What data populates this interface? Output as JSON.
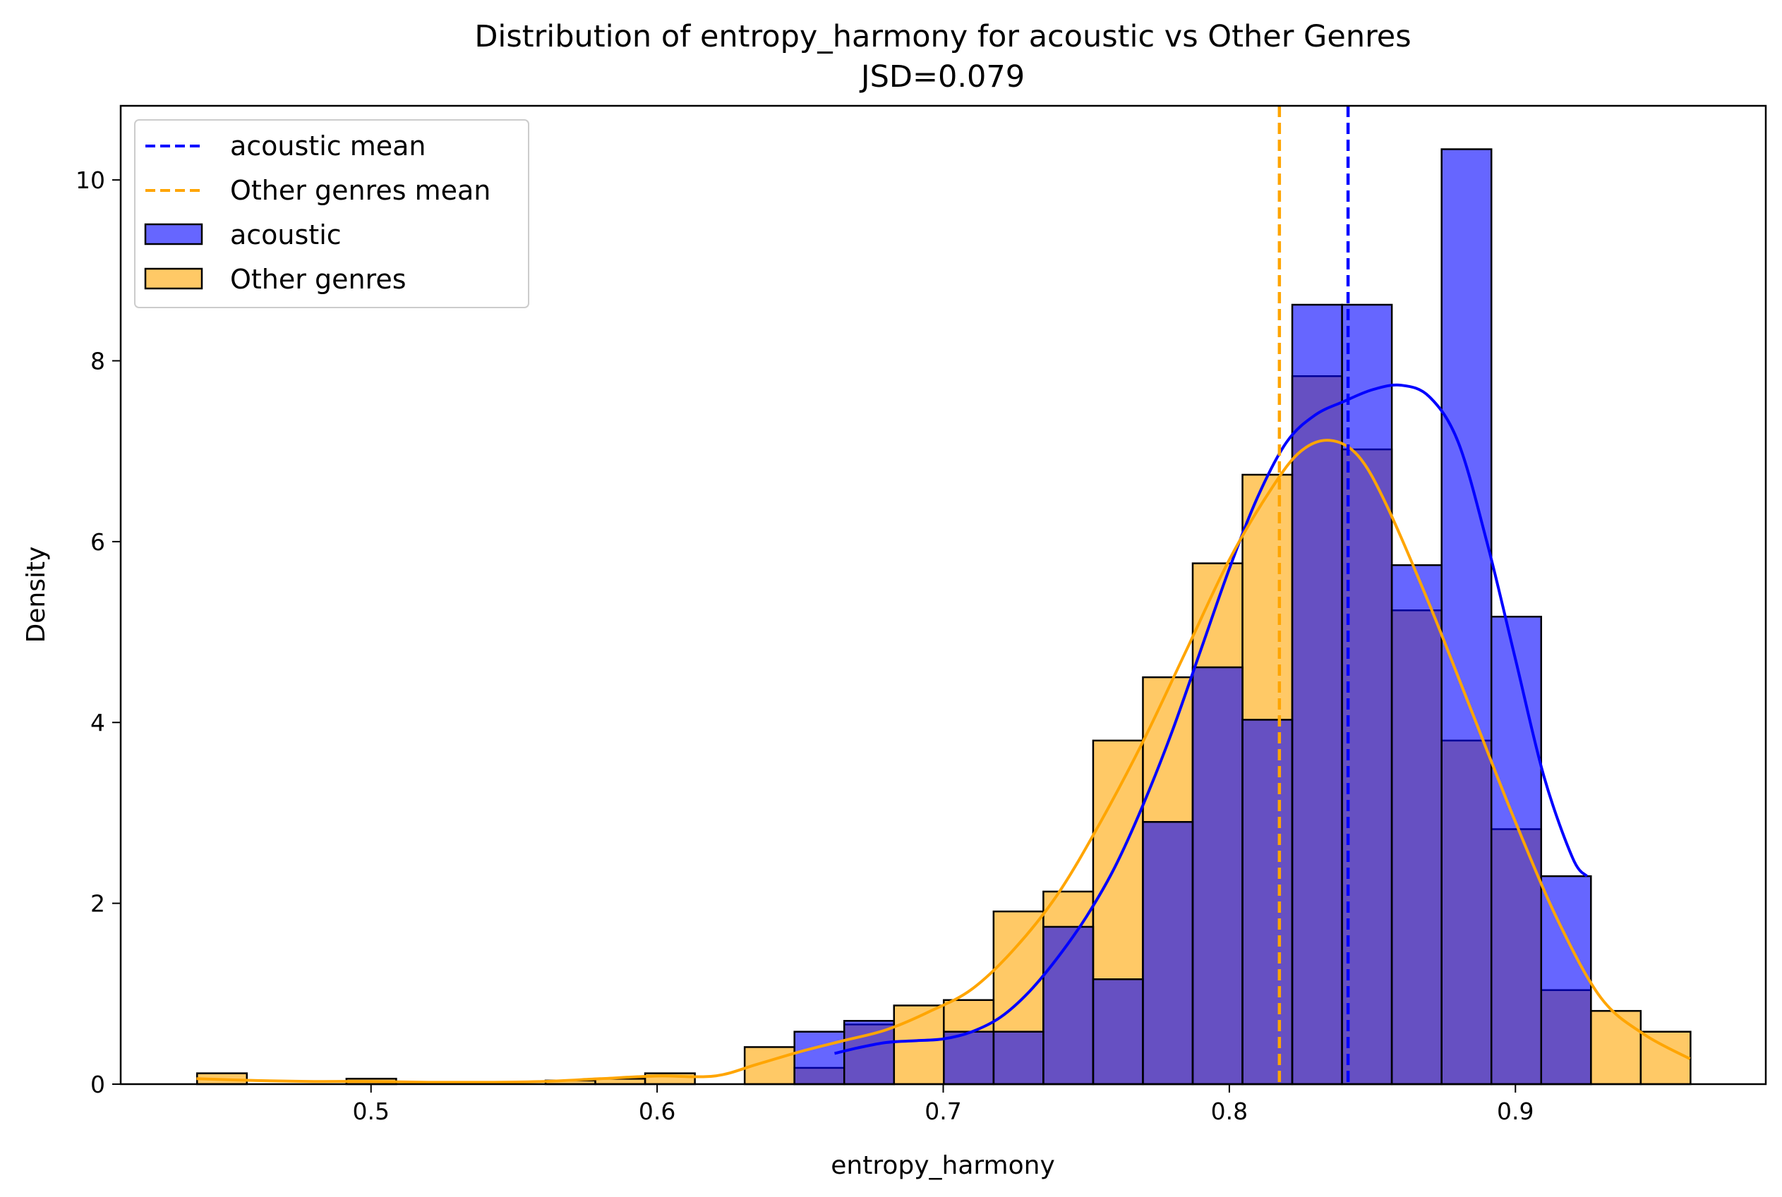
{
  "chart_data": {
    "type": "histogram",
    "title": "Distribution of entropy_harmony for acoustic vs Other Genres",
    "subtitle": "JSD=0.079",
    "xlabel": "entropy_harmony",
    "ylabel": "Density",
    "xlim": [
      0.4125,
      0.9875
    ],
    "ylim": [
      0,
      10.82
    ],
    "xticks": [
      0.5,
      0.6,
      0.7,
      0.8,
      0.9
    ],
    "xtick_labels": [
      "0.5",
      "0.6",
      "0.7",
      "0.8",
      "0.9"
    ],
    "yticks": [
      0,
      2,
      4,
      6,
      8,
      10
    ],
    "ytick_labels": [
      "0",
      "2",
      "4",
      "6",
      "8",
      "10"
    ],
    "grid": false,
    "legend_position": "top-left",
    "legend": [
      {
        "label": "acoustic mean",
        "kind": "dashed-line",
        "color": "#0000ff"
      },
      {
        "label": "Other genres mean",
        "kind": "dashed-line",
        "color": "#ffa500"
      },
      {
        "label": "acoustic",
        "kind": "patch",
        "color": "#6666ff"
      },
      {
        "label": "Other genres",
        "kind": "patch",
        "color": "#ffc966"
      }
    ],
    "series": [
      {
        "name": "Other genres",
        "color": "#ffa500",
        "bars": [
          {
            "x0": 0.4392,
            "x1": 0.4566,
            "density": 0.12
          },
          {
            "x0": 0.4914,
            "x1": 0.5088,
            "density": 0.06
          },
          {
            "x0": 0.561,
            "x1": 0.5784,
            "density": 0.04
          },
          {
            "x0": 0.5784,
            "x1": 0.5958,
            "density": 0.06
          },
          {
            "x0": 0.5958,
            "x1": 0.6132,
            "density": 0.12
          },
          {
            "x0": 0.6306,
            "x1": 0.648,
            "density": 0.41
          },
          {
            "x0": 0.648,
            "x1": 0.6654,
            "density": 0.18
          },
          {
            "x0": 0.6654,
            "x1": 0.6828,
            "density": 0.66
          },
          {
            "x0": 0.6828,
            "x1": 0.7002,
            "density": 0.87
          },
          {
            "x0": 0.7002,
            "x1": 0.7176,
            "density": 0.93
          },
          {
            "x0": 0.7176,
            "x1": 0.735,
            "density": 1.91
          },
          {
            "x0": 0.735,
            "x1": 0.7524,
            "density": 2.13
          },
          {
            "x0": 0.7524,
            "x1": 0.7698,
            "density": 3.8
          },
          {
            "x0": 0.7698,
            "x1": 0.7872,
            "density": 4.5
          },
          {
            "x0": 0.7872,
            "x1": 0.8046,
            "density": 5.76
          },
          {
            "x0": 0.8046,
            "x1": 0.822,
            "density": 6.74
          },
          {
            "x0": 0.822,
            "x1": 0.8394,
            "density": 7.83
          },
          {
            "x0": 0.8394,
            "x1": 0.8568,
            "density": 7.02
          },
          {
            "x0": 0.8568,
            "x1": 0.8742,
            "density": 5.24
          },
          {
            "x0": 0.8742,
            "x1": 0.8916,
            "density": 3.8
          },
          {
            "x0": 0.8916,
            "x1": 0.909,
            "density": 2.82
          },
          {
            "x0": 0.909,
            "x1": 0.9264,
            "density": 1.04
          },
          {
            "x0": 0.9264,
            "x1": 0.9438,
            "density": 0.81
          },
          {
            "x0": 0.9438,
            "x1": 0.9612,
            "density": 0.58
          }
        ],
        "kde": [
          [
            0.439,
            0.06
          ],
          [
            0.46,
            0.04
          ],
          [
            0.48,
            0.03
          ],
          [
            0.5,
            0.03
          ],
          [
            0.52,
            0.02
          ],
          [
            0.54,
            0.02
          ],
          [
            0.56,
            0.03
          ],
          [
            0.58,
            0.06
          ],
          [
            0.6,
            0.09
          ],
          [
            0.62,
            0.09
          ],
          [
            0.635,
            0.22
          ],
          [
            0.65,
            0.36
          ],
          [
            0.665,
            0.48
          ],
          [
            0.68,
            0.6
          ],
          [
            0.695,
            0.8
          ],
          [
            0.71,
            1.05
          ],
          [
            0.725,
            1.5
          ],
          [
            0.74,
            2.1
          ],
          [
            0.755,
            2.9
          ],
          [
            0.77,
            3.8
          ],
          [
            0.785,
            4.8
          ],
          [
            0.8,
            5.8
          ],
          [
            0.815,
            6.6
          ],
          [
            0.825,
            7.0
          ],
          [
            0.835,
            7.12
          ],
          [
            0.845,
            6.95
          ],
          [
            0.855,
            6.4
          ],
          [
            0.87,
            5.3
          ],
          [
            0.885,
            4.1
          ],
          [
            0.9,
            2.9
          ],
          [
            0.915,
            1.8
          ],
          [
            0.93,
            0.95
          ],
          [
            0.945,
            0.55
          ],
          [
            0.961,
            0.28
          ]
        ],
        "mean": 0.8175
      },
      {
        "name": "acoustic",
        "color": "#0000ff",
        "bars": [
          {
            "x0": 0.648,
            "x1": 0.6654,
            "density": 0.58
          },
          {
            "x0": 0.6654,
            "x1": 0.6828,
            "density": 0.7
          },
          {
            "x0": 0.6828,
            "x1": 0.7002,
            "density": 0.0
          },
          {
            "x0": 0.7002,
            "x1": 0.7176,
            "density": 0.58
          },
          {
            "x0": 0.7176,
            "x1": 0.735,
            "density": 0.58
          },
          {
            "x0": 0.735,
            "x1": 0.7524,
            "density": 1.74
          },
          {
            "x0": 0.7524,
            "x1": 0.7698,
            "density": 1.16
          },
          {
            "x0": 0.7698,
            "x1": 0.7872,
            "density": 2.9
          },
          {
            "x0": 0.7872,
            "x1": 0.8046,
            "density": 4.61
          },
          {
            "x0": 0.8046,
            "x1": 0.822,
            "density": 4.03
          },
          {
            "x0": 0.822,
            "x1": 0.8394,
            "density": 8.62
          },
          {
            "x0": 0.8394,
            "x1": 0.8568,
            "density": 8.62
          },
          {
            "x0": 0.8568,
            "x1": 0.8742,
            "density": 5.74
          },
          {
            "x0": 0.8742,
            "x1": 0.8916,
            "density": 10.34
          },
          {
            "x0": 0.8916,
            "x1": 0.909,
            "density": 5.17
          },
          {
            "x0": 0.909,
            "x1": 0.9264,
            "density": 2.3
          }
        ],
        "kde": [
          [
            0.662,
            0.34
          ],
          [
            0.67,
            0.4
          ],
          [
            0.68,
            0.46
          ],
          [
            0.69,
            0.48
          ],
          [
            0.7,
            0.5
          ],
          [
            0.71,
            0.58
          ],
          [
            0.72,
            0.74
          ],
          [
            0.73,
            1.02
          ],
          [
            0.74,
            1.4
          ],
          [
            0.75,
            1.85
          ],
          [
            0.76,
            2.4
          ],
          [
            0.77,
            3.1
          ],
          [
            0.78,
            3.9
          ],
          [
            0.79,
            4.8
          ],
          [
            0.8,
            5.7
          ],
          [
            0.81,
            6.5
          ],
          [
            0.82,
            7.1
          ],
          [
            0.83,
            7.4
          ],
          [
            0.84,
            7.55
          ],
          [
            0.85,
            7.68
          ],
          [
            0.86,
            7.73
          ],
          [
            0.87,
            7.6
          ],
          [
            0.88,
            7.1
          ],
          [
            0.89,
            6.0
          ],
          [
            0.9,
            4.7
          ],
          [
            0.91,
            3.4
          ],
          [
            0.92,
            2.5
          ],
          [
            0.925,
            2.3
          ]
        ],
        "mean": 0.8415
      }
    ]
  }
}
